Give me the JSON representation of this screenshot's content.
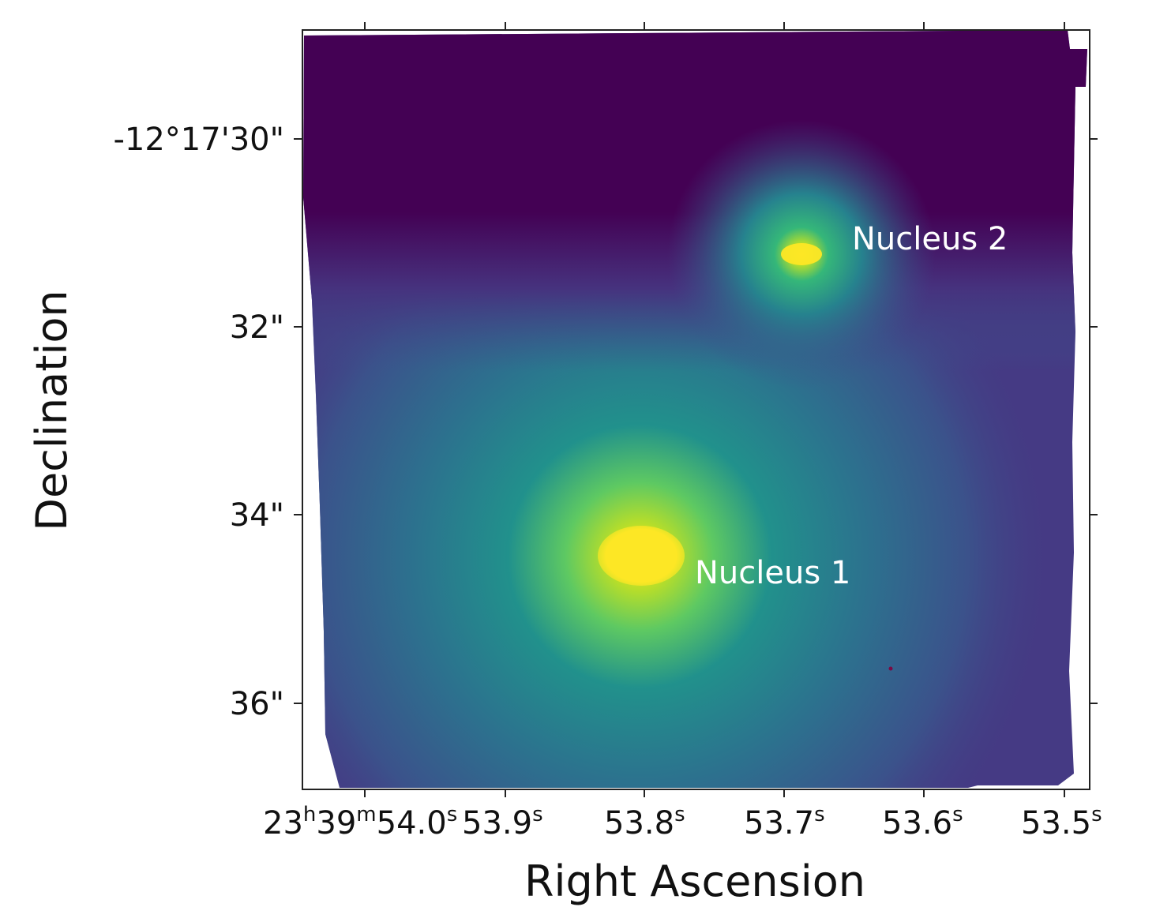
{
  "figure": {
    "xlabel": "Right Ascension",
    "ylabel": "Declination",
    "colormap": "viridis",
    "colors": {
      "background": "#440154",
      "mid": "#31688e",
      "teal": "#21918c",
      "green": "#5ec962",
      "peak": "#fde725"
    },
    "x_ticks": [
      {
        "label": "23h39m54.0s",
        "parts": [
          {
            "t": "23"
          },
          {
            "t": "h",
            "sup": true
          },
          {
            "t": "39"
          },
          {
            "t": "m",
            "sup": true
          },
          {
            "t": "54.0"
          },
          {
            "t": "s",
            "sup": true
          }
        ]
      },
      {
        "label": "53.9s",
        "parts": [
          {
            "t": "53.9"
          },
          {
            "t": "s",
            "sup": true
          }
        ]
      },
      {
        "label": "53.8s",
        "parts": [
          {
            "t": "53.8"
          },
          {
            "t": "s",
            "sup": true
          }
        ]
      },
      {
        "label": "53.7s",
        "parts": [
          {
            "t": "53.7"
          },
          {
            "t": "s",
            "sup": true
          }
        ]
      },
      {
        "label": "53.6s",
        "parts": [
          {
            "t": "53.6"
          },
          {
            "t": "s",
            "sup": true
          }
        ]
      },
      {
        "label": "53.5s",
        "parts": [
          {
            "t": "53.5"
          },
          {
            "t": "s",
            "sup": true
          }
        ]
      }
    ],
    "y_ticks": [
      "-12°17'30\"",
      "32\"",
      "34\"",
      "36\""
    ],
    "annotations": [
      {
        "label": "Nucleus 2"
      },
      {
        "label": "Nucleus 1"
      }
    ]
  }
}
